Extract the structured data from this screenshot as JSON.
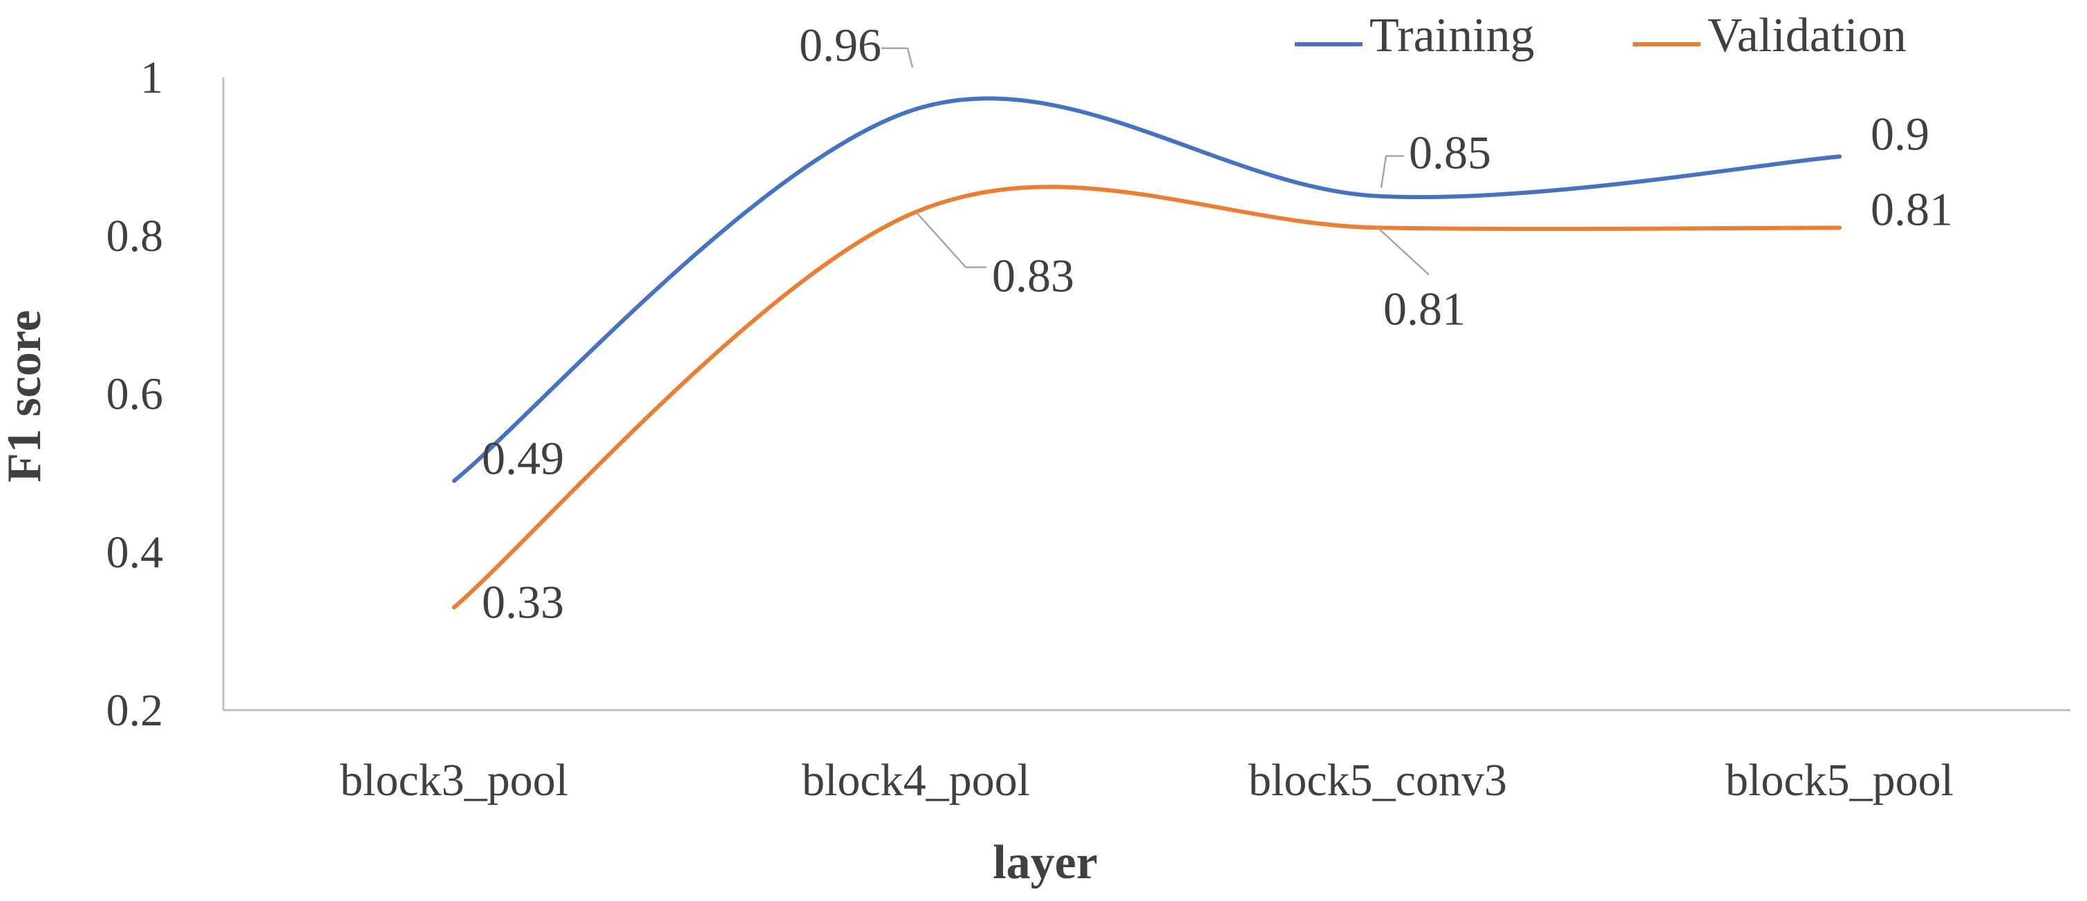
{
  "chart_data": {
    "type": "line",
    "smooth": true,
    "categories": [
      "block3_pool",
      "block4_pool",
      "block5_conv3",
      "block5_pool"
    ],
    "series": [
      {
        "name": "Training",
        "color": "#4472C4",
        "values": [
          0.49,
          0.96,
          0.85,
          0.9
        ]
      },
      {
        "name": "Validation",
        "color": "#ED7D31",
        "values": [
          0.33,
          0.83,
          0.81,
          0.81
        ]
      }
    ],
    "title": "",
    "xlabel": "layer",
    "ylabel": "F1 score",
    "ylim": [
      0.2,
      1
    ],
    "yticks": [
      "0.2",
      "0.4",
      "0.6",
      "0.8",
      "1"
    ],
    "grid": false,
    "legend": "top-right",
    "data_labels": {
      "Training": [
        "0.49",
        "0.96",
        "0.85",
        "0.9"
      ],
      "Validation": [
        "0.33",
        "0.83",
        "0.81",
        "0.81"
      ]
    }
  }
}
